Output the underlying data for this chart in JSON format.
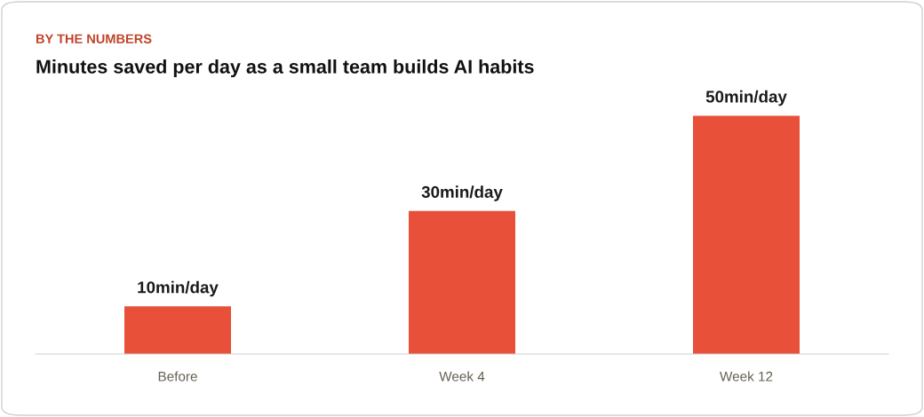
{
  "chart_data": {
    "type": "bar",
    "subtitle": "BY THE NUMBERS",
    "title": "Minutes saved per day as a small team builds AI habits",
    "categories": [
      "Before",
      "Week 4",
      "Week 12"
    ],
    "values": [
      10,
      30,
      50
    ],
    "value_labels": [
      "10min/day",
      "30min/day",
      "50min/day"
    ],
    "color": "#e8503a",
    "grid": false,
    "legend": false
  }
}
